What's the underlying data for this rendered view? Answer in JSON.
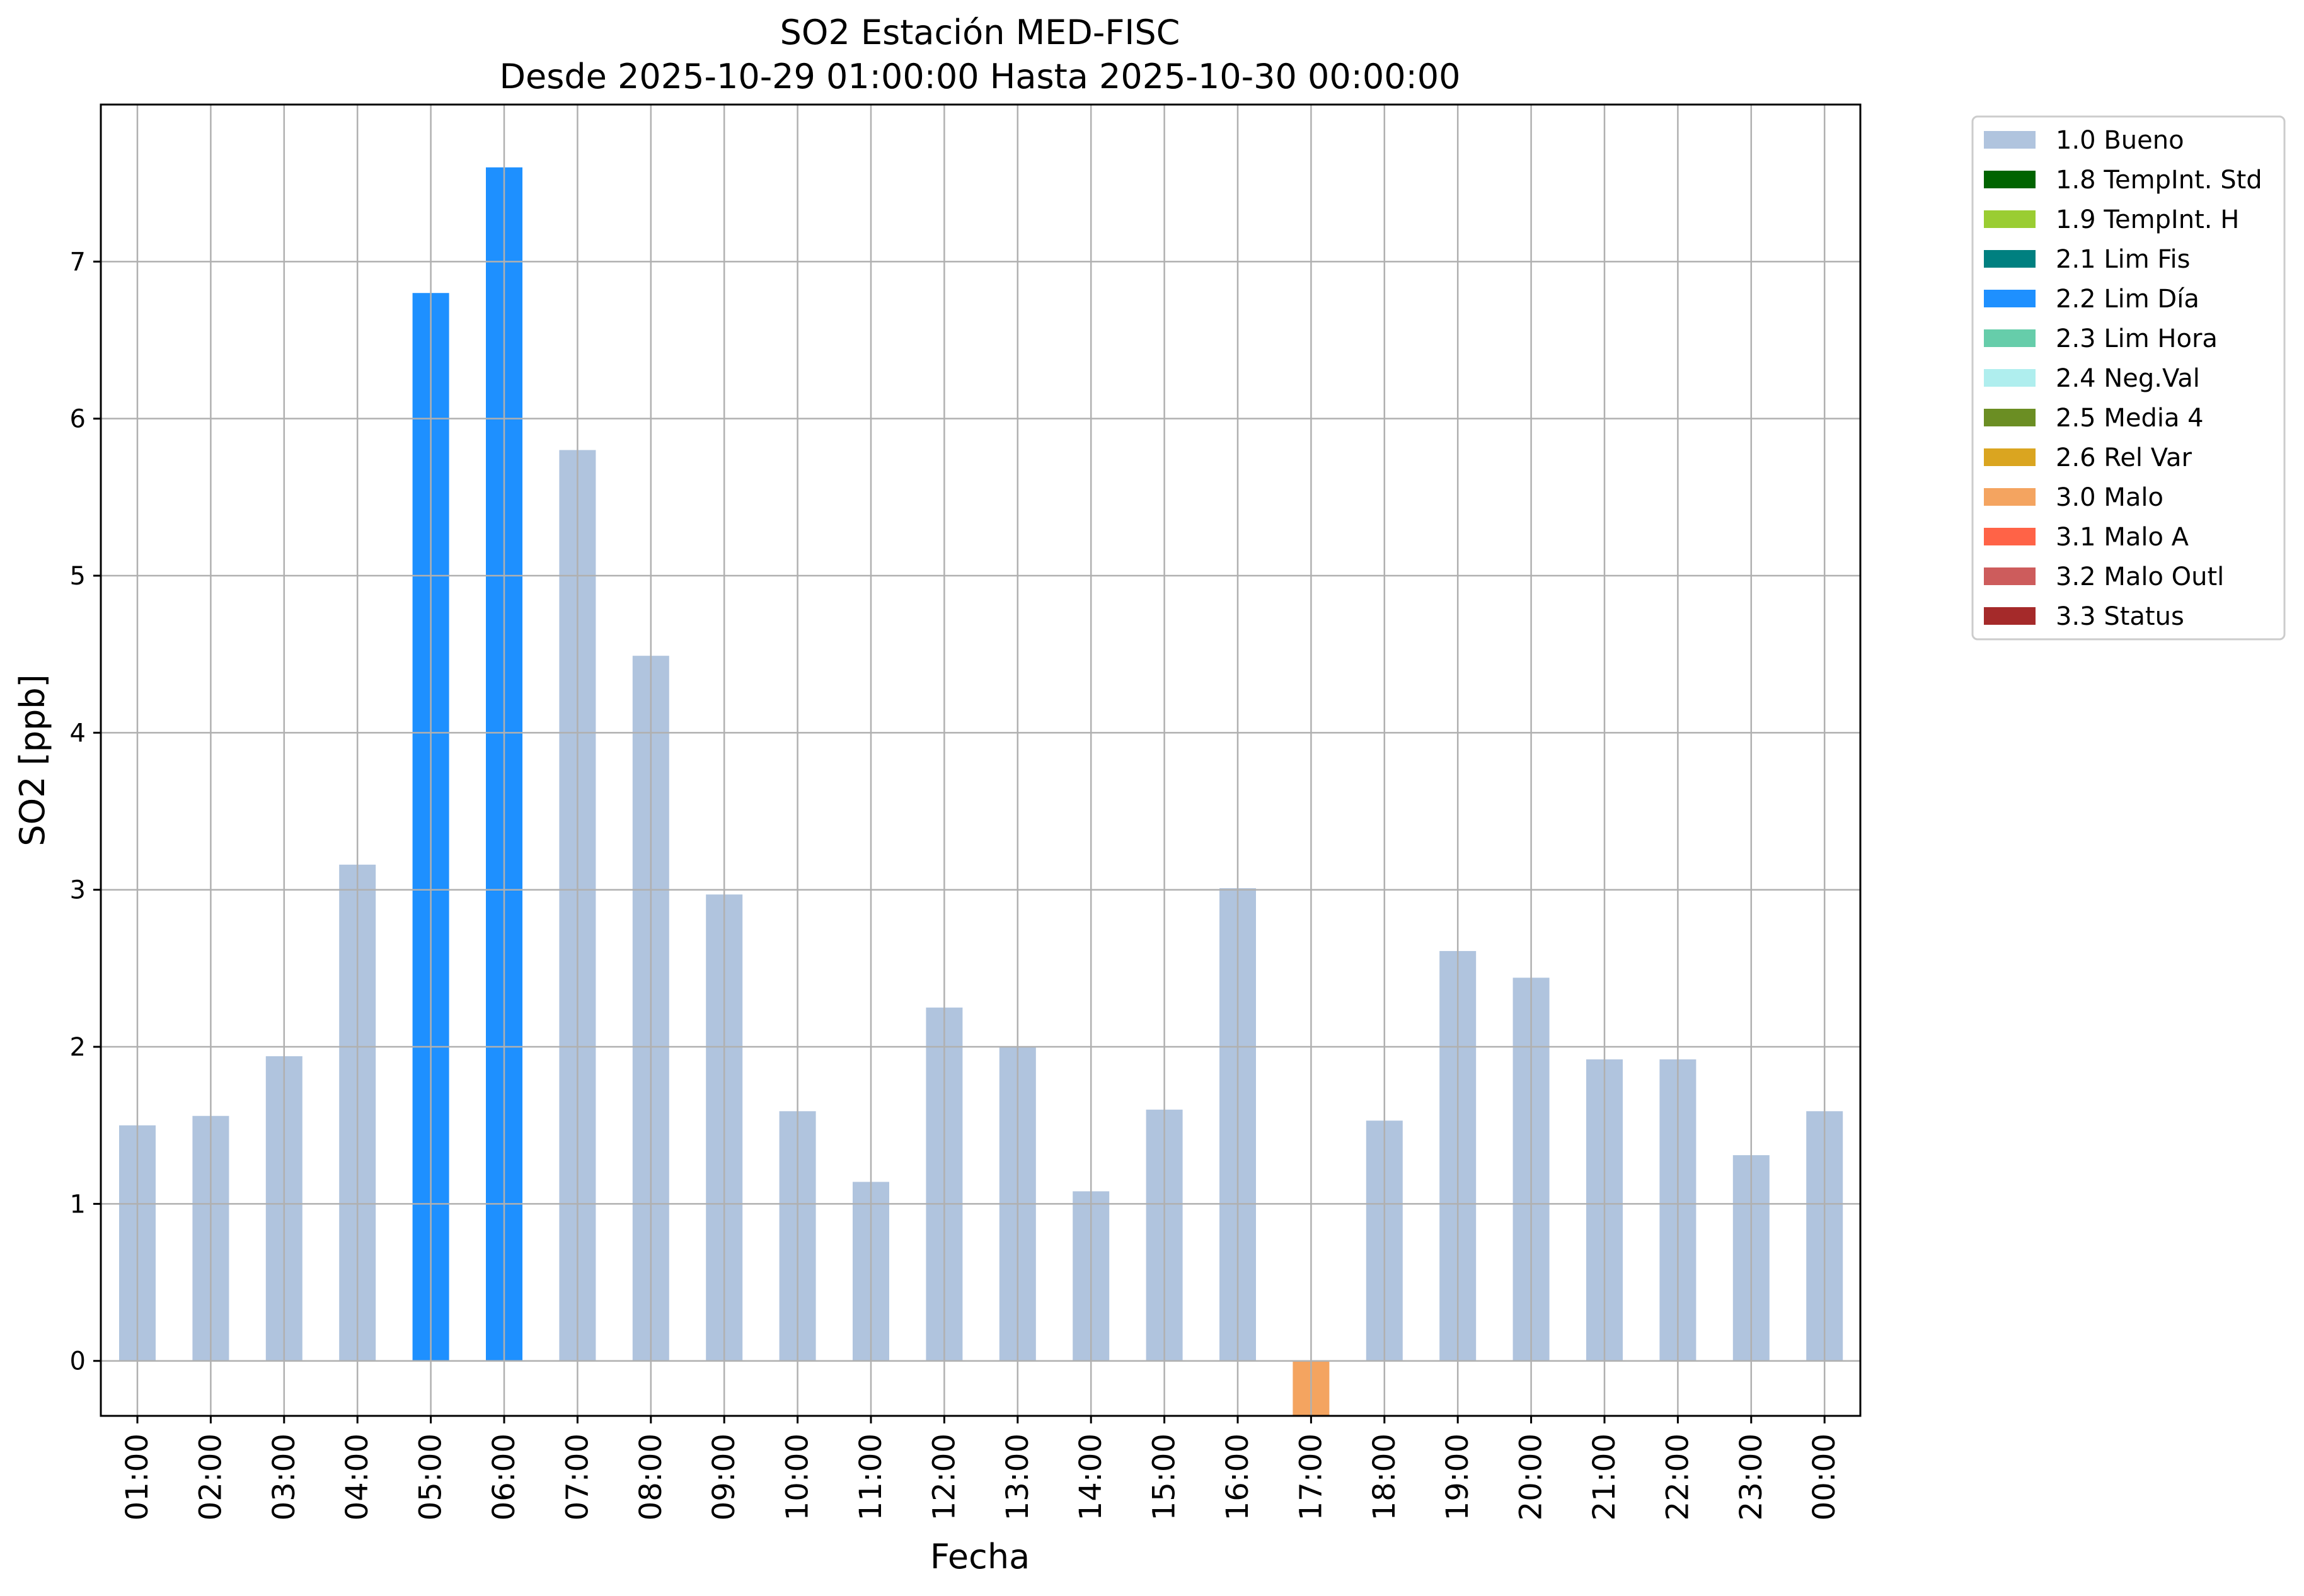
{
  "chart_data": {
    "type": "bar",
    "title": "SO2 Estación MED-FISC",
    "subtitle": "Desde 2025-10-29 01:00:00 Hasta 2025-10-30 00:00:00",
    "xlabel": "Fecha",
    "ylabel": "SO2 [ppb]",
    "ylim": [
      -0.35,
      8.0
    ],
    "yticks": [
      "0",
      "1",
      "2",
      "3",
      "4",
      "5",
      "6",
      "7"
    ],
    "grid": true,
    "legend_position": "outside-top-right",
    "categories": [
      "01:00",
      "02:00",
      "03:00",
      "04:00",
      "05:00",
      "06:00",
      "07:00",
      "08:00",
      "09:00",
      "10:00",
      "11:00",
      "12:00",
      "13:00",
      "14:00",
      "15:00",
      "16:00",
      "17:00",
      "18:00",
      "19:00",
      "20:00",
      "21:00",
      "22:00",
      "23:00",
      "00:00"
    ],
    "values": [
      1.5,
      1.56,
      1.94,
      3.16,
      6.8,
      7.6,
      5.8,
      4.49,
      2.97,
      1.59,
      1.14,
      2.25,
      2.0,
      1.08,
      1.6,
      3.01,
      -0.35,
      1.53,
      2.61,
      2.44,
      1.92,
      1.92,
      1.31,
      1.59
    ],
    "flags": [
      "1.0 Bueno",
      "1.0 Bueno",
      "1.0 Bueno",
      "1.0 Bueno",
      "2.2 Lim Día",
      "2.2 Lim Día",
      "1.0 Bueno",
      "1.0 Bueno",
      "1.0 Bueno",
      "1.0 Bueno",
      "1.0 Bueno",
      "1.0 Bueno",
      "1.0 Bueno",
      "1.0 Bueno",
      "1.0 Bueno",
      "1.0 Bueno",
      "3.0 Malo",
      "1.0 Bueno",
      "1.0 Bueno",
      "1.0 Bueno",
      "1.0 Bueno",
      "1.0 Bueno",
      "1.0 Bueno",
      "1.0 Bueno"
    ],
    "legend": [
      {
        "label": "1.0 Bueno",
        "color": "#b0c4de"
      },
      {
        "label": "1.8 TempInt. Std",
        "color": "#006400"
      },
      {
        "label": "1.9 TempInt. H",
        "color": "#9acd32"
      },
      {
        "label": "2.1 Lim Fis",
        "color": "#008080"
      },
      {
        "label": "2.2 Lim Día",
        "color": "#1e90ff"
      },
      {
        "label": "2.3 Lim Hora",
        "color": "#66cdaa"
      },
      {
        "label": "2.4 Neg.Val",
        "color": "#afeeee"
      },
      {
        "label": "2.5 Media 4",
        "color": "#6b8e23"
      },
      {
        "label": "2.6 Rel Var",
        "color": "#daa520"
      },
      {
        "label": "3.0 Malo",
        "color": "#f4a460"
      },
      {
        "label": "3.1 Malo A",
        "color": "#ff6347"
      },
      {
        "label": "3.2 Malo Outl",
        "color": "#cd5c5c"
      },
      {
        "label": "3.3 Status",
        "color": "#a52a2a"
      }
    ]
  }
}
